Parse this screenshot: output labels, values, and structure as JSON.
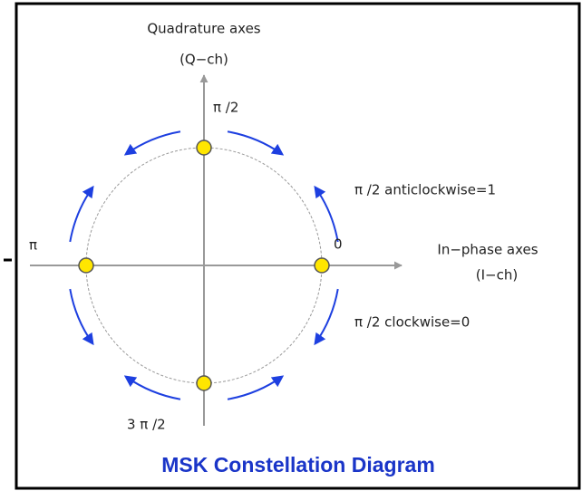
{
  "diagram": {
    "title": "MSK Constellation Diagram",
    "q_axis": {
      "label": "Quadrature axes",
      "sublabel": "(Q−ch)"
    },
    "i_axis": {
      "label": "In−phase axes",
      "sublabel": "(I−ch)"
    },
    "phases": {
      "zero": "0",
      "half_pi": "π /2",
      "pi": "π",
      "three_half_pi": "3 π /2"
    },
    "rules": {
      "anticlockwise": "π /2 anticlockwise=1",
      "clockwise": "π /2 clockwise=0"
    }
  }
}
